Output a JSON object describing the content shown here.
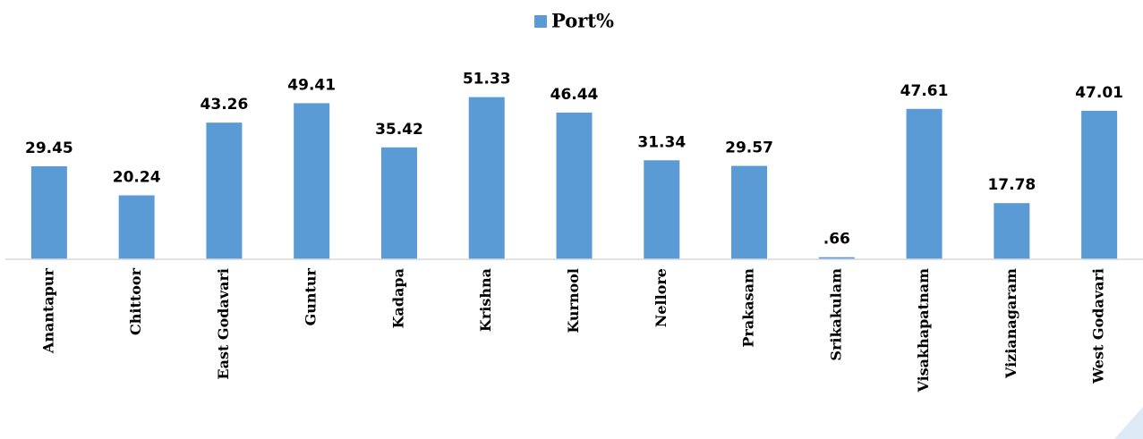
{
  "chart_data": {
    "type": "bar",
    "categories": [
      "Anantapur",
      "Chittoor",
      "East Godavari",
      "Guntur",
      "Kadapa",
      "Krishna",
      "Kurnool",
      "Nellore",
      "Prakasam",
      "Srikakulam",
      "Visakhapatnam",
      "Vizianagaram",
      "West Godavari"
    ],
    "series": [
      {
        "name": "Port%",
        "color": "#5b9bd5",
        "values": [
          29.45,
          20.24,
          43.26,
          49.41,
          35.42,
          51.33,
          46.44,
          31.34,
          29.57,
          0.66,
          47.61,
          17.78,
          47.01
        ],
        "value_labels": [
          "29.45",
          "20.24",
          "43.26",
          "49.41",
          "35.42",
          "51.33",
          "46.44",
          "31.34",
          "29.57",
          ".66",
          "47.61",
          "17.78",
          "47.01"
        ]
      }
    ],
    "ylim": [
      0,
      60
    ],
    "legend": "top"
  }
}
